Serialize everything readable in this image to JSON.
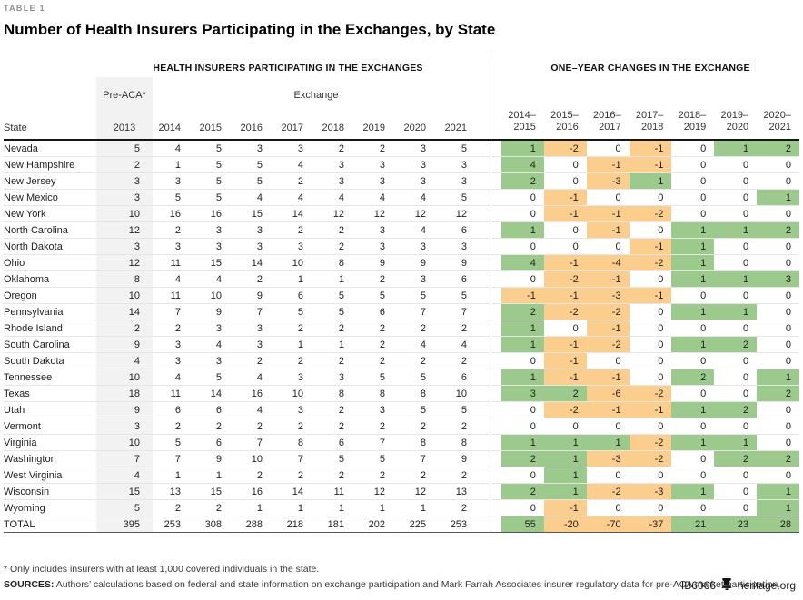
{
  "table_label": "TABLE 1",
  "chart_data": {
    "type": "table",
    "title": "Number of Health Insurers Participating in the Exchanges, by State",
    "left_section": {
      "header": "HEALTH INSURERS PARTICIPATING IN THE EXCHANGES",
      "state_label": "State",
      "pre_aca_label": "Pre-ACA*",
      "pre_aca_year": "2013",
      "exchange_label": "Exchange",
      "exchange_years": [
        "2014",
        "2015",
        "2016",
        "2017",
        "2018",
        "2019",
        "2020",
        "2021"
      ]
    },
    "right_section": {
      "header": "ONE–YEAR CHANGES IN THE EXCHANGE",
      "periods": [
        {
          "line1": "2014–",
          "line2": "2015"
        },
        {
          "line1": "2015–",
          "line2": "2016"
        },
        {
          "line1": "2016–",
          "line2": "2017"
        },
        {
          "line1": "2017–",
          "line2": "2018"
        },
        {
          "line1": "2018–",
          "line2": "2019"
        },
        {
          "line1": "2019–",
          "line2": "2020"
        },
        {
          "line1": "2020–",
          "line2": "2021"
        }
      ]
    },
    "rows": [
      {
        "state": "Nevada",
        "values": [
          5,
          4,
          5,
          3,
          3,
          2,
          2,
          3,
          5
        ],
        "changes": [
          1,
          -2,
          0,
          -1,
          0,
          1,
          2
        ]
      },
      {
        "state": "New Hampshire",
        "values": [
          2,
          1,
          5,
          5,
          4,
          3,
          3,
          3,
          3
        ],
        "changes": [
          4,
          0,
          -1,
          -1,
          0,
          0,
          0
        ]
      },
      {
        "state": "New Jersey",
        "values": [
          3,
          3,
          5,
          5,
          2,
          3,
          3,
          3,
          3
        ],
        "changes": [
          2,
          0,
          -3,
          1,
          0,
          0,
          0
        ]
      },
      {
        "state": "New Mexico",
        "values": [
          3,
          5,
          5,
          4,
          4,
          4,
          4,
          4,
          5
        ],
        "changes": [
          0,
          -1,
          0,
          0,
          0,
          0,
          1
        ]
      },
      {
        "state": "New York",
        "values": [
          10,
          16,
          16,
          15,
          14,
          12,
          12,
          12,
          12
        ],
        "changes": [
          0,
          -1,
          -1,
          -2,
          0,
          0,
          0
        ]
      },
      {
        "state": "North Carolina",
        "values": [
          12,
          2,
          3,
          3,
          2,
          2,
          3,
          4,
          6
        ],
        "changes": [
          1,
          0,
          -1,
          0,
          1,
          1,
          2
        ]
      },
      {
        "state": "North Dakota",
        "values": [
          3,
          3,
          3,
          3,
          3,
          2,
          3,
          3,
          3
        ],
        "changes": [
          0,
          0,
          0,
          -1,
          1,
          0,
          0
        ]
      },
      {
        "state": "Ohio",
        "values": [
          12,
          11,
          15,
          14,
          10,
          8,
          9,
          9,
          9
        ],
        "changes": [
          4,
          -1,
          -4,
          -2,
          1,
          0,
          0
        ]
      },
      {
        "state": "Oklahoma",
        "values": [
          8,
          4,
          4,
          2,
          1,
          1,
          2,
          3,
          6
        ],
        "changes": [
          0,
          -2,
          -1,
          0,
          1,
          1,
          3
        ]
      },
      {
        "state": "Oregon",
        "values": [
          10,
          11,
          10,
          9,
          6,
          5,
          5,
          5,
          5
        ],
        "changes": [
          -1,
          -1,
          -3,
          -1,
          0,
          0,
          0
        ]
      },
      {
        "state": "Pennsylvania",
        "values": [
          14,
          7,
          9,
          7,
          5,
          5,
          6,
          7,
          7
        ],
        "changes": [
          2,
          -2,
          -2,
          0,
          1,
          1,
          0
        ]
      },
      {
        "state": "Rhode Island",
        "values": [
          2,
          2,
          3,
          3,
          2,
          2,
          2,
          2,
          2
        ],
        "changes": [
          1,
          0,
          -1,
          0,
          0,
          0,
          0
        ]
      },
      {
        "state": "South Carolina",
        "values": [
          9,
          3,
          4,
          3,
          1,
          1,
          2,
          4,
          4
        ],
        "changes": [
          1,
          -1,
          -2,
          0,
          1,
          2,
          0
        ]
      },
      {
        "state": "South Dakota",
        "values": [
          4,
          3,
          3,
          2,
          2,
          2,
          2,
          2,
          2
        ],
        "changes": [
          0,
          -1,
          0,
          0,
          0,
          0,
          0
        ]
      },
      {
        "state": "Tennessee",
        "values": [
          10,
          4,
          5,
          4,
          3,
          3,
          5,
          5,
          6
        ],
        "changes": [
          1,
          -1,
          -1,
          0,
          2,
          0,
          1
        ]
      },
      {
        "state": "Texas",
        "values": [
          18,
          11,
          14,
          16,
          10,
          8,
          8,
          8,
          10
        ],
        "changes": [
          3,
          2,
          -6,
          -2,
          0,
          0,
          2
        ]
      },
      {
        "state": "Utah",
        "values": [
          9,
          6,
          6,
          4,
          3,
          2,
          3,
          5,
          5
        ],
        "changes": [
          0,
          -2,
          -1,
          -1,
          1,
          2,
          0
        ]
      },
      {
        "state": "Vermont",
        "values": [
          3,
          2,
          2,
          2,
          2,
          2,
          2,
          2,
          2
        ],
        "changes": [
          0,
          0,
          0,
          0,
          0,
          0,
          0
        ]
      },
      {
        "state": "Virginia",
        "values": [
          10,
          5,
          6,
          7,
          8,
          6,
          7,
          8,
          8
        ],
        "changes": [
          1,
          1,
          1,
          -2,
          1,
          1,
          0
        ]
      },
      {
        "state": "Washington",
        "values": [
          7,
          7,
          9,
          10,
          7,
          5,
          5,
          7,
          9
        ],
        "changes": [
          2,
          1,
          -3,
          -2,
          0,
          2,
          2
        ]
      },
      {
        "state": "West Virginia",
        "values": [
          4,
          1,
          1,
          2,
          2,
          2,
          2,
          2,
          2
        ],
        "changes": [
          0,
          1,
          0,
          0,
          0,
          0,
          0
        ]
      },
      {
        "state": "Wisconsin",
        "values": [
          15,
          13,
          15,
          16,
          14,
          11,
          12,
          12,
          13
        ],
        "changes": [
          2,
          1,
          -2,
          -3,
          1,
          0,
          1
        ]
      },
      {
        "state": "Wyoming",
        "values": [
          5,
          2,
          2,
          1,
          1,
          1,
          1,
          1,
          2
        ],
        "changes": [
          0,
          -1,
          0,
          0,
          0,
          0,
          1
        ]
      }
    ],
    "total_row": {
      "state": "TOTAL",
      "values": [
        395,
        253,
        308,
        288,
        218,
        181,
        202,
        225,
        253
      ],
      "changes": [
        55,
        -20,
        -70,
        -37,
        21,
        23,
        28
      ]
    },
    "colors": {
      "positive_bg": "#9cc98c",
      "negative_bg": "#fbce8d",
      "pre_aca_column_bg": "#f2f2f2"
    }
  },
  "notes": {
    "footnote": "* Only includes insurers with at least 1,000 covered individuals in the state.",
    "sources_label": "SOURCES:",
    "sources_text": " Authors’ calculations based on federal and state information on exchange participation and Mark Farrah Associates insurer regulatory data for pre-ACA market participation."
  },
  "footer": {
    "doc_id": "IB6066",
    "site": "heritage.org",
    "icon": "liberty-bell"
  }
}
